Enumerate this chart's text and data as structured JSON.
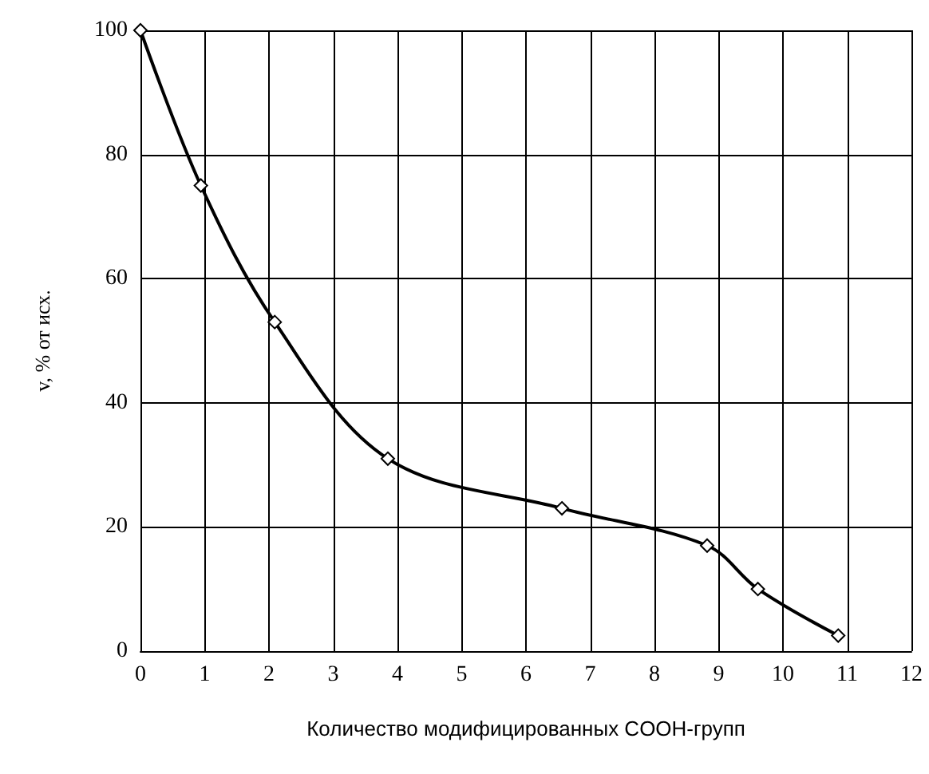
{
  "chart_data": {
    "type": "line",
    "xlabel": "Количество модифицированных COOH-групп",
    "ylabel": "v, % от исх.",
    "x": [
      0,
      0.94,
      2.09,
      3.85,
      6.56,
      8.82,
      9.61,
      10.86
    ],
    "series": [
      {
        "color": "#000000",
        "values": [
          100,
          75,
          53,
          31,
          23,
          17,
          10,
          2.5
        ]
      }
    ],
    "xlim": [
      0,
      12
    ],
    "xticks": [
      0,
      1,
      2,
      3,
      4,
      5,
      6,
      7,
      8,
      9,
      10,
      11,
      12
    ],
    "ylim": [
      0,
      100
    ],
    "yticks": [
      0,
      20,
      40,
      60,
      80,
      100
    ],
    "grid": true,
    "marker": "diamond",
    "line_style": "solid"
  }
}
